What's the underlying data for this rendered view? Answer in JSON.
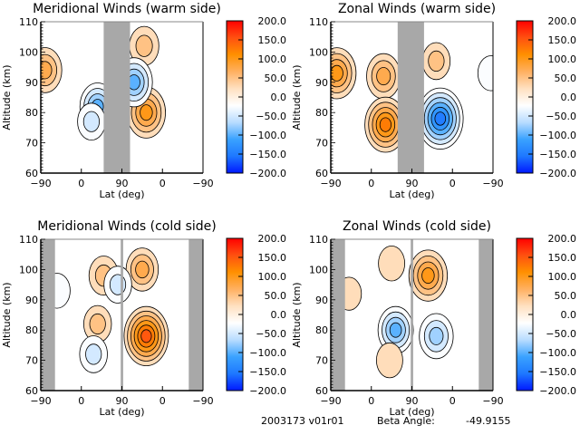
{
  "colors": {
    "mask": "#a8a8a8",
    "axis": "#000000",
    "colormap": [
      "#0018ff",
      "#1e78ff",
      "#3aa2ff",
      "#b8dcff",
      "#ffffff",
      "#ffe0c0",
      "#ffb060",
      "#ff9000",
      "#ff5010",
      "#ff0000"
    ]
  },
  "footer": {
    "id": "2003173 v01r01",
    "beta_label": "Beta Angle:",
    "beta_value": "-49.9155"
  },
  "chart_data": [
    {
      "type": "heatmap",
      "title": "Meridional Winds (warm side)",
      "xlabel": "Lat (deg)",
      "ylabel": "Altitude (km)",
      "xticks": [
        "-90",
        "0",
        "90",
        "0",
        "-90"
      ],
      "yticks": [
        "60",
        "70",
        "80",
        "90",
        "100",
        "110"
      ],
      "ylim": [
        60,
        110
      ],
      "track_range": [
        0,
        4
      ],
      "colorbar": {
        "ticks": [
          "200.0",
          "150.0",
          "100.0",
          "50.0",
          "0.0",
          "-50.0",
          "-100.0",
          "-150.0",
          "-200.0"
        ],
        "range": [
          -200,
          200
        ]
      },
      "masked": [
        [
          1.55,
          2.2
        ]
      ],
      "features": [
        {
          "track": 0.1,
          "alt": 94,
          "value": 80
        },
        {
          "track": 1.4,
          "alt": 82,
          "value": -90
        },
        {
          "track": 1.25,
          "alt": 77,
          "value": -40
        },
        {
          "track": 2.6,
          "alt": 80,
          "value": 110
        },
        {
          "track": 2.55,
          "alt": 102,
          "value": 50
        },
        {
          "track": 2.3,
          "alt": 90,
          "value": -100
        }
      ]
    },
    {
      "type": "heatmap",
      "title": "Zonal Winds (warm side)",
      "xlabel": "Lat (deg)",
      "ylabel": "Altitude (km)",
      "xticks": [
        "-90",
        "0",
        "90",
        "0",
        "-90"
      ],
      "yticks": [
        "60",
        "70",
        "80",
        "90",
        "100",
        "110"
      ],
      "ylim": [
        60,
        110
      ],
      "track_range": [
        0,
        4
      ],
      "colorbar": {
        "ticks": [
          "200.0",
          "150.0",
          "100.0",
          "50.0",
          "0.0",
          "-50.0",
          "-100.0",
          "-150.0",
          "-200.0"
        ],
        "range": [
          -200,
          200
        ]
      },
      "masked": [
        [
          1.65,
          2.3
        ]
      ],
      "features": [
        {
          "track": 0.15,
          "alt": 93,
          "value": 110
        },
        {
          "track": 1.3,
          "alt": 92,
          "value": 80
        },
        {
          "track": 1.35,
          "alt": 76,
          "value": 130
        },
        {
          "track": 2.6,
          "alt": 97,
          "value": 40
        },
        {
          "track": 2.7,
          "alt": 78,
          "value": -160
        },
        {
          "track": 3.95,
          "alt": 93,
          "value": -30
        }
      ]
    },
    {
      "type": "heatmap",
      "title": "Meridional Winds (cold side)",
      "xlabel": "Lat (deg)",
      "ylabel": "Altitude (km)",
      "xticks": [
        "-90",
        "0",
        "90",
        "0",
        "-90"
      ],
      "yticks": [
        "60",
        "70",
        "80",
        "90",
        "100",
        "110"
      ],
      "ylim": [
        60,
        110
      ],
      "track_range": [
        0,
        4
      ],
      "colorbar": {
        "ticks": [
          "200.0",
          "150.0",
          "100.0",
          "50.0",
          "0.0",
          "-50.0",
          "-100.0",
          "-150.0",
          "-200.0"
        ],
        "range": [
          -200,
          200
        ]
      },
      "masked": [
        [
          0,
          0.35
        ],
        [
          1.97,
          2.03
        ],
        [
          3.65,
          4
        ]
      ],
      "features": [
        {
          "track": 1.55,
          "alt": 98,
          "value": 50
        },
        {
          "track": 1.4,
          "alt": 82,
          "value": 40
        },
        {
          "track": 2.5,
          "alt": 100,
          "value": 70
        },
        {
          "track": 2.6,
          "alt": 78,
          "value": 150
        },
        {
          "track": 1.3,
          "alt": 72,
          "value": -40
        },
        {
          "track": 0.4,
          "alt": 93,
          "value": -30
        },
        {
          "track": 1.9,
          "alt": 95,
          "value": -40
        }
      ]
    },
    {
      "type": "heatmap",
      "title": "Zonal Winds (cold side)",
      "xlabel": "Lat (deg)",
      "ylabel": "Altitude (km)",
      "xticks": [
        "-90",
        "0",
        "90",
        "0",
        "-90"
      ],
      "yticks": [
        "60",
        "70",
        "80",
        "90",
        "100",
        "110"
      ],
      "ylim": [
        60,
        110
      ],
      "track_range": [
        0,
        4
      ],
      "colorbar": {
        "ticks": [
          "200.0",
          "150.0",
          "100.0",
          "50.0",
          "0.0",
          "-50.0",
          "-100.0",
          "-150.0",
          "-200.0"
        ],
        "range": [
          -200,
          200
        ]
      },
      "masked": [
        [
          0,
          0.35
        ],
        [
          1.97,
          2.03
        ],
        [
          3.65,
          4
        ]
      ],
      "features": [
        {
          "track": 2.4,
          "alt": 98,
          "value": 110
        },
        {
          "track": 1.6,
          "alt": 80,
          "value": -90
        },
        {
          "track": 2.6,
          "alt": 78,
          "value": -80
        },
        {
          "track": 1.5,
          "alt": 102,
          "value": 30
        },
        {
          "track": 1.45,
          "alt": 70,
          "value": 30
        },
        {
          "track": 0.45,
          "alt": 92,
          "value": 20
        }
      ]
    }
  ]
}
